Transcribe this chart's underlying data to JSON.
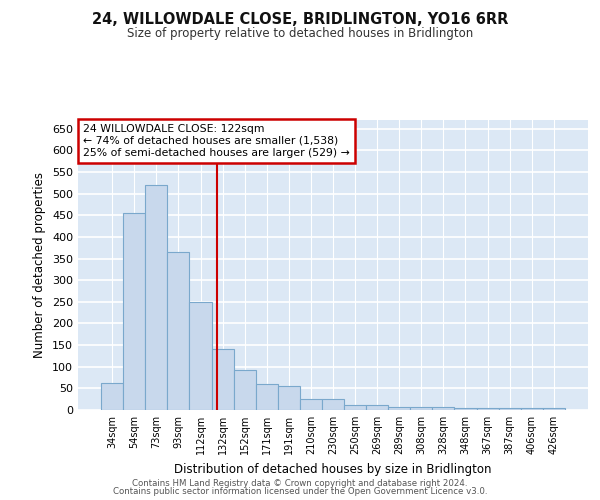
{
  "title": "24, WILLOWDALE CLOSE, BRIDLINGTON, YO16 6RR",
  "subtitle": "Size of property relative to detached houses in Bridlington",
  "xlabel": "Distribution of detached houses by size in Bridlington",
  "ylabel": "Number of detached properties",
  "bar_color": "#c8d8ec",
  "bar_edge_color": "#7aa8cc",
  "background_color": "#dce8f5",
  "fig_background_color": "#ffffff",
  "grid_color": "#ffffff",
  "categories": [
    "34sqm",
    "54sqm",
    "73sqm",
    "93sqm",
    "112sqm",
    "132sqm",
    "152sqm",
    "171sqm",
    "191sqm",
    "210sqm",
    "230sqm",
    "250sqm",
    "269sqm",
    "289sqm",
    "308sqm",
    "328sqm",
    "348sqm",
    "367sqm",
    "387sqm",
    "406sqm",
    "426sqm"
  ],
  "values": [
    63,
    455,
    520,
    365,
    250,
    140,
    93,
    60,
    55,
    25,
    25,
    12,
    12,
    8,
    8,
    8,
    5,
    5,
    5,
    5,
    4
  ],
  "ylim": [
    0,
    670
  ],
  "yticks": [
    0,
    50,
    100,
    150,
    200,
    250,
    300,
    350,
    400,
    450,
    500,
    550,
    600,
    650
  ],
  "property_line_x": 4.74,
  "property_line_color": "#cc0000",
  "annotation_text": "24 WILLOWDALE CLOSE: 122sqm\n← 74% of detached houses are smaller (1,538)\n25% of semi-detached houses are larger (529) →",
  "annotation_box_color": "#cc0000",
  "annotation_text_color": "#000000",
  "footer_line1": "Contains HM Land Registry data © Crown copyright and database right 2024.",
  "footer_line2": "Contains public sector information licensed under the Open Government Licence v3.0."
}
